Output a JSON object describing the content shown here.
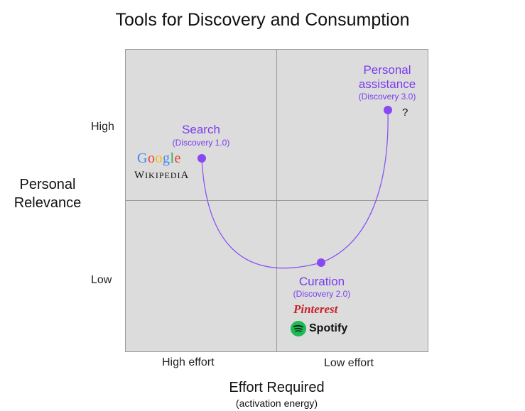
{
  "title": "Tools for Discovery and Consumption",
  "y_axis": {
    "label_line1": "Personal",
    "label_line2": "Relevance",
    "high": "High",
    "low": "Low"
  },
  "x_axis": {
    "label": "Effort Required",
    "sublabel": "(activation energy)",
    "left": "High effort",
    "right": "Low effort"
  },
  "points": {
    "search": {
      "label": "Search",
      "sub": "(Discovery 1.0)"
    },
    "curation": {
      "label": "Curation",
      "sub": "(Discovery 2.0)"
    },
    "personal": {
      "label_line1": "Personal",
      "label_line2": "assistance",
      "sub": "(Discovery 3.0)",
      "question": "?"
    }
  },
  "logos": {
    "google": "Google",
    "wikipedia": "Wikipedia",
    "pinterest": "Pinterest",
    "spotify": "Spotify"
  },
  "colors": {
    "accent": "#7a3cf0",
    "quadrant_bg": "#dcdcdc",
    "grid_line": "#9a9a9a",
    "google": [
      "#4285f4",
      "#ea4335",
      "#fbbc05",
      "#4285f4",
      "#34a853",
      "#ea4335"
    ],
    "pinterest": "#c8232c",
    "spotify": "#1db954"
  }
}
